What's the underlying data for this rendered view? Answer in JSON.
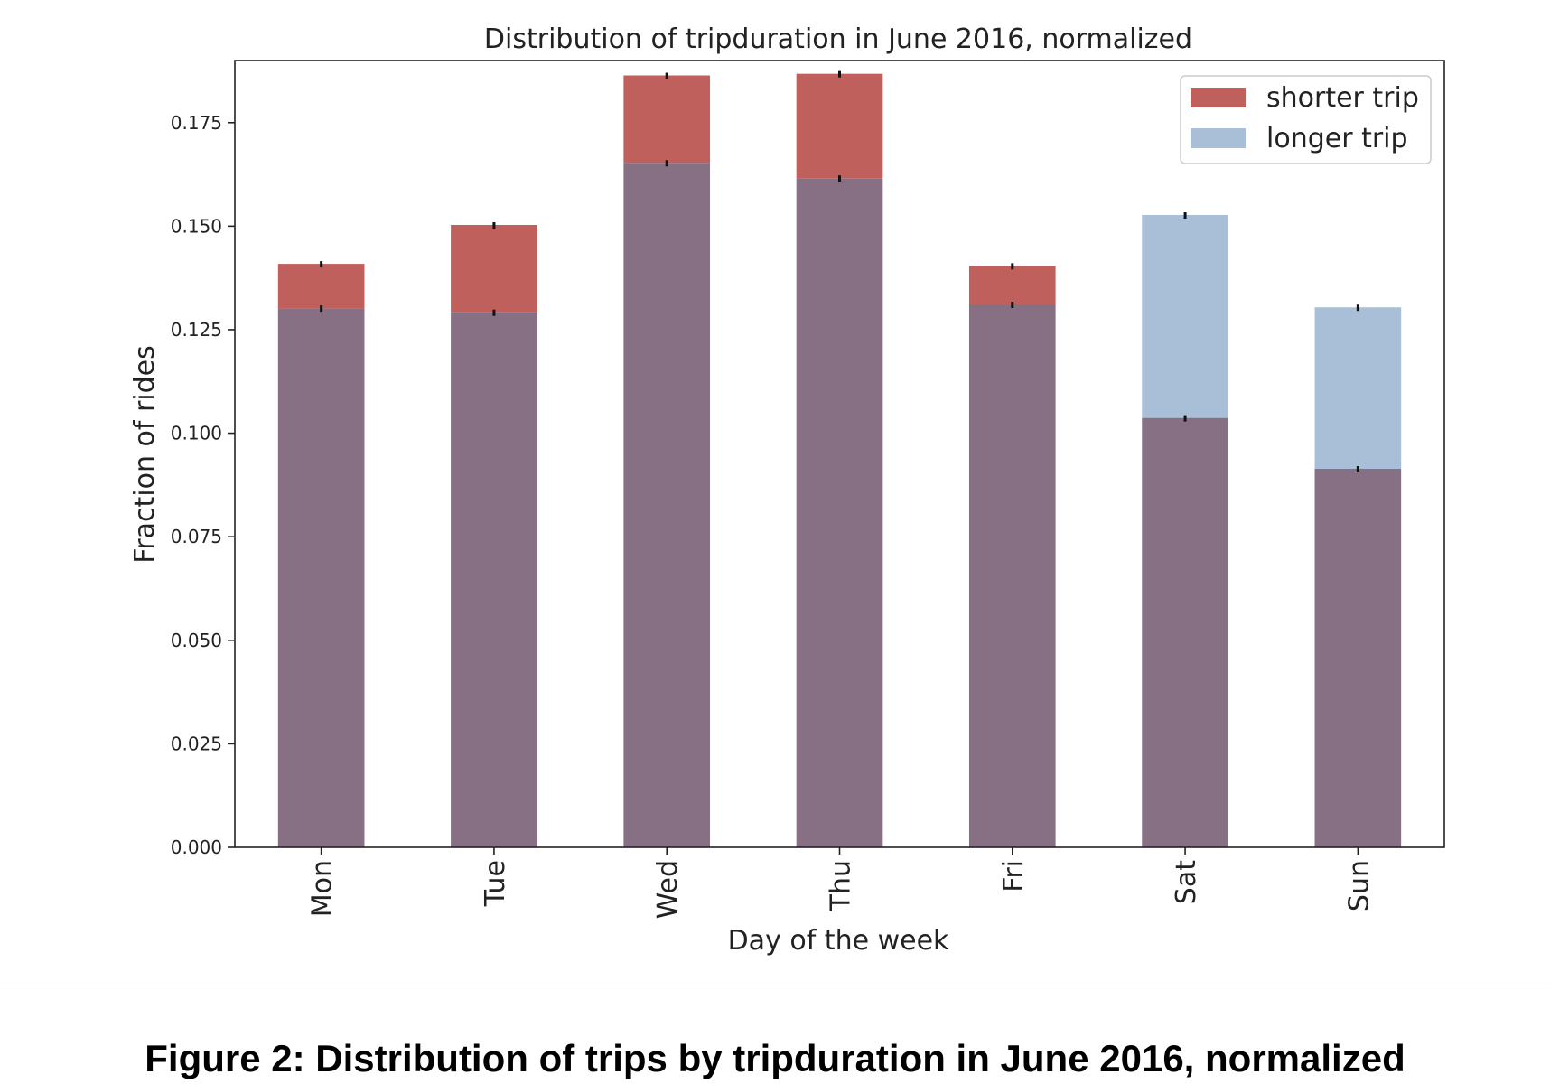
{
  "chart_data": {
    "type": "bar",
    "stacked_overlay": true,
    "title": "Distribution of tripduration in June 2016, normalized",
    "xlabel": "Day of the week",
    "ylabel": "Fraction of rides",
    "categories": [
      "Mon",
      "Tue",
      "Wed",
      "Thu",
      "Fri",
      "Sat",
      "Sun"
    ],
    "ylim": [
      0,
      0.19
    ],
    "yticks": [
      "0.000",
      "0.025",
      "0.050",
      "0.075",
      "0.100",
      "0.125",
      "0.150",
      "0.175"
    ],
    "ytick_values": [
      0,
      0.025,
      0.05,
      0.075,
      0.1,
      0.125,
      0.15,
      0.175
    ],
    "series": [
      {
        "name": "shorter trip",
        "color": "#c0605d",
        "values": [
          0.1409,
          0.1503,
          0.1864,
          0.1868,
          0.1404,
          0.1037,
          0.0914
        ]
      },
      {
        "name": "longer trip",
        "color": "#a9bfd7",
        "values": [
          0.1302,
          0.1292,
          0.1653,
          0.1616,
          0.1311,
          0.1527,
          0.1304
        ]
      }
    ],
    "overlap_color": "#877083",
    "legend_position": "top-right",
    "grid": false
  },
  "caption": "Figure 2: Distribution of trips by tripduration in June 2016, normalized"
}
